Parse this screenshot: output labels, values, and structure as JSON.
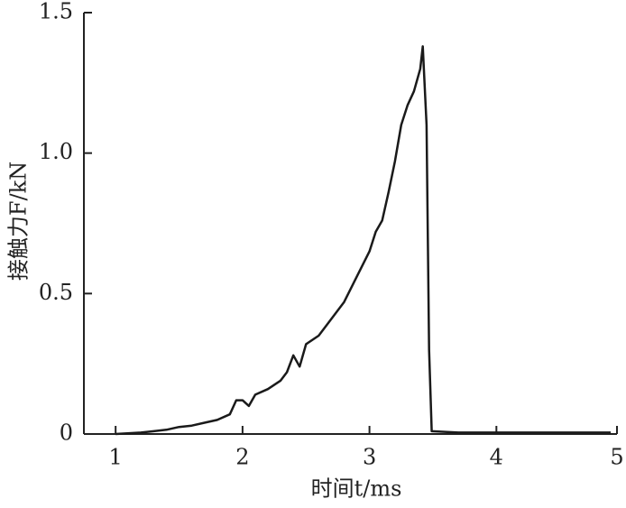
{
  "chart_data": {
    "type": "line",
    "xlabel": "时间t/ms",
    "ylabel": "接触力F/kN",
    "xlim": [
      0.75,
      4.95
    ],
    "ylim": [
      0,
      1.5
    ],
    "xticks": [
      1,
      2,
      3,
      4,
      5
    ],
    "yticks": [
      0,
      0.5,
      {
        "value": 1,
        "label": "1.0"
      },
      1.5
    ],
    "series": [
      {
        "color": "#1a1a1a",
        "x": [
          1.0,
          1.2,
          1.3,
          1.4,
          1.5,
          1.6,
          1.7,
          1.8,
          1.9,
          1.95,
          2.0,
          2.05,
          2.1,
          2.2,
          2.3,
          2.35,
          2.4,
          2.45,
          2.5,
          2.6,
          2.7,
          2.8,
          2.9,
          3.0,
          3.05,
          3.1,
          3.15,
          3.2,
          3.25,
          3.3,
          3.35,
          3.4,
          3.42,
          3.45,
          3.47,
          3.49,
          3.7,
          4.0,
          4.5,
          4.9
        ],
        "values": [
          0,
          0.005,
          0.01,
          0.015,
          0.025,
          0.03,
          0.04,
          0.05,
          0.07,
          0.12,
          0.12,
          0.1,
          0.14,
          0.16,
          0.19,
          0.22,
          0.28,
          0.24,
          0.32,
          0.35,
          0.41,
          0.47,
          0.56,
          0.65,
          0.72,
          0.76,
          0.86,
          0.97,
          1.1,
          1.17,
          1.22,
          1.3,
          1.38,
          1.1,
          0.3,
          0.01,
          0.005,
          0.005,
          0.005,
          0.005
        ]
      }
    ]
  }
}
